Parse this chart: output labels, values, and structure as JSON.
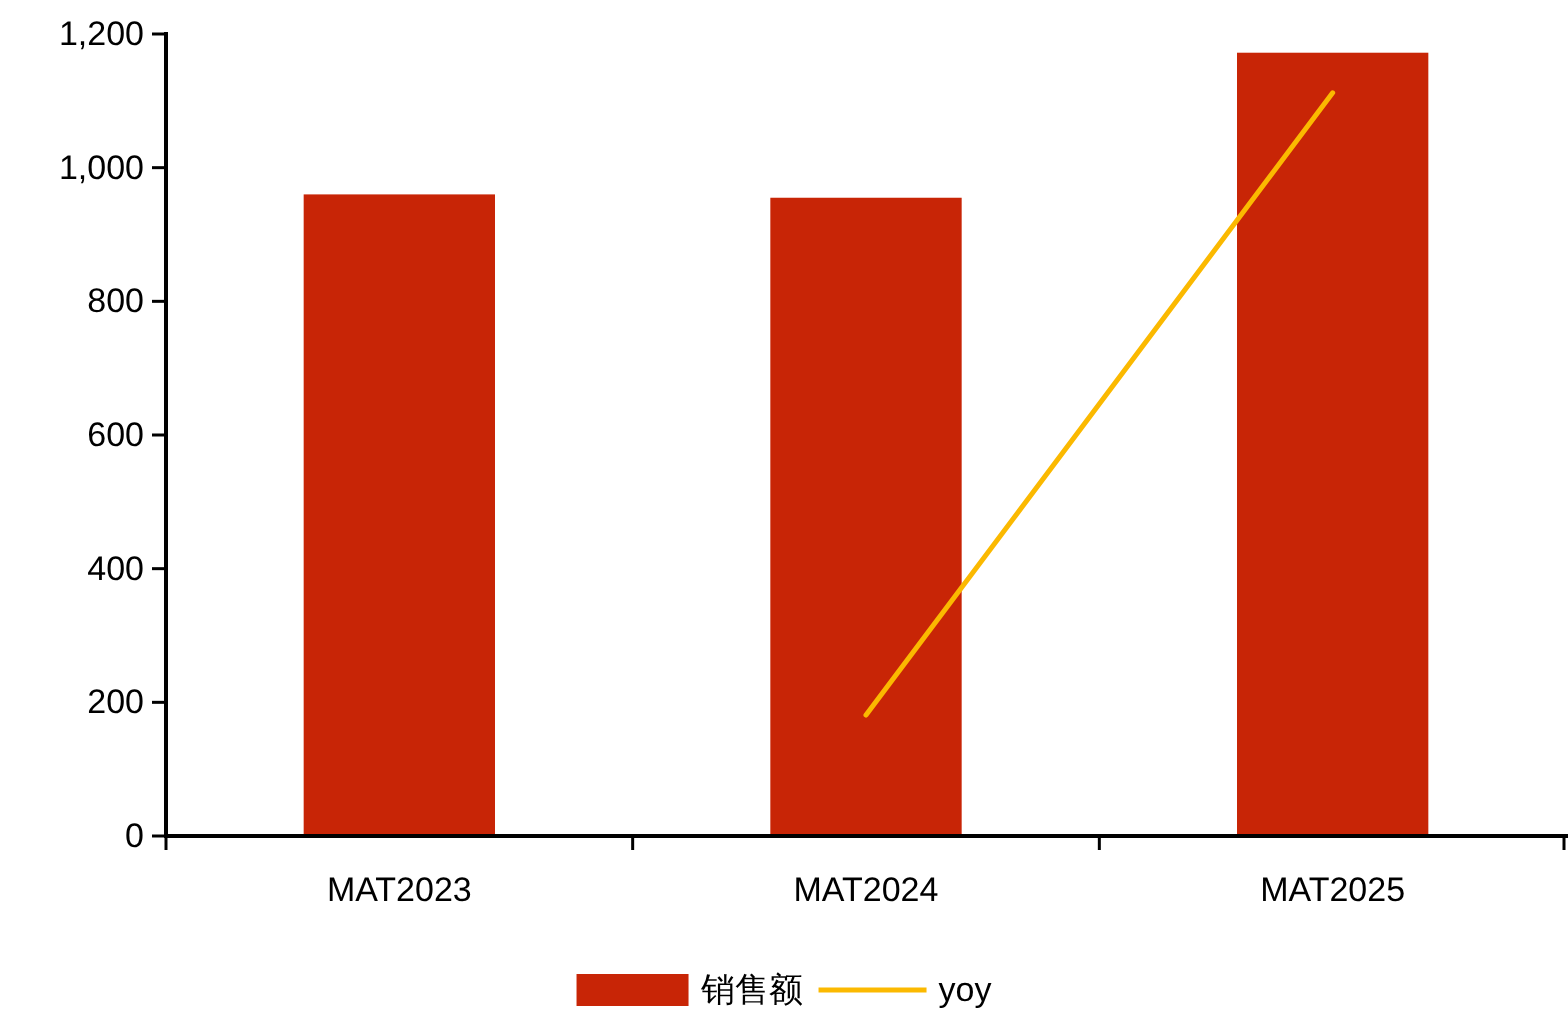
{
  "chart_data": {
    "type": "bar",
    "categories": [
      "MAT2023",
      "MAT2024",
      "MAT2025"
    ],
    "series": [
      {
        "name": "销售额",
        "color": "#c82506",
        "values": [
          960,
          955,
          1172
        ]
      },
      {
        "name": "yoy",
        "type": "line",
        "color": "#fbb900",
        "values": [
          null,
          181,
          1112
        ]
      }
    ],
    "ylim": [
      0,
      1200
    ],
    "yticks": [
      0,
      200,
      400,
      600,
      800,
      {
        "value": 1000,
        "label": "1,000"
      },
      {
        "value": 1200,
        "label": "1,200"
      }
    ],
    "legend": "bottom",
    "marker": "none",
    "line_style": "solid"
  }
}
